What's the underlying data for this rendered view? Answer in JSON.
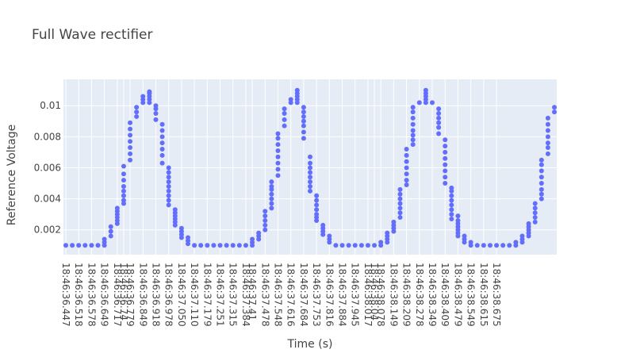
{
  "chart_data": {
    "type": "scatter",
    "title": "Full Wave rectifier",
    "xlabel": "Time (s)",
    "ylabel": "Reference Voltage",
    "colors": {
      "marker": "#636efa",
      "plot_bg": "#e5ecf6",
      "grid": "#ffffff"
    },
    "ylim": [
      0.0004,
      0.0117
    ],
    "y_ticks": [
      "0.002",
      "0.004",
      "0.006",
      "0.008",
      "0.01"
    ],
    "grid": true,
    "x_tick_labels": [
      "18:46:36.447",
      "18:46:36.518",
      "18:46:36.578",
      "18:46:36.649",
      "18:46:36.717",
      "18:46:36.74",
      "18:46:36.779",
      "18:46:36.849",
      "18:46:36.918",
      "18:46:36.978",
      "18:46:37.050",
      "18:46:37.110",
      "18:46:37.179",
      "18:46:37.251",
      "18:46:37.315",
      "18:46:37.384",
      "18:46:37.41",
      "18:46:37.478",
      "18:46:37.548",
      "18:46:37.616",
      "18:46:37.684",
      "18:46:37.753",
      "18:46:37.816",
      "18:46:37.884",
      "18:46:37.945",
      "18:46:38.017",
      "18:46:38.04",
      "18:46:38.078",
      "18:46:38.149",
      "18:46:38.209",
      "18:46:38.278",
      "18:46:38.349",
      "18:46:38.409",
      "18:46:38.479",
      "18:46:38.549",
      "18:46:38.615",
      "18:46:38.675"
    ],
    "x_tick_index": [
      0,
      2,
      4,
      6,
      8,
      9,
      10,
      12,
      14,
      16,
      18,
      20,
      22,
      24,
      26,
      28,
      29,
      31,
      33,
      35,
      37,
      39,
      41,
      43,
      45,
      47,
      48,
      49,
      51,
      53,
      55,
      57,
      59,
      61,
      63,
      65,
      67
    ],
    "series": [
      {
        "values": [
          [
            0.001
          ],
          [
            0.001
          ],
          [
            0.001
          ],
          [
            0.001
          ],
          [
            0.001
          ],
          [
            0.001
          ],
          [
            0.001,
            0.0012,
            0.0014
          ],
          [
            0.0016,
            0.0019,
            0.0022
          ],
          [
            0.0024,
            0.0026,
            0.0028,
            0.003,
            0.0032,
            0.0034
          ],
          [
            0.0037,
            0.0039,
            0.0042,
            0.0045,
            0.0048,
            0.0052,
            0.0056,
            0.0061
          ],
          [
            0.0065,
            0.0069,
            0.0073,
            0.0077,
            0.0081,
            0.0085,
            0.0089
          ],
          [
            0.0093,
            0.0096,
            0.0099
          ],
          [
            0.0102,
            0.0104,
            0.0106
          ],
          [
            0.0102,
            0.0104,
            0.0106,
            0.0108,
            0.0109
          ],
          [
            0.0091,
            0.0095,
            0.0098,
            0.01
          ],
          [
            0.0063,
            0.0068,
            0.0072,
            0.0076,
            0.008,
            0.0084,
            0.0088
          ],
          [
            0.0036,
            0.0039,
            0.0042,
            0.0045,
            0.0048,
            0.0051,
            0.0054,
            0.0057,
            0.006
          ],
          [
            0.0023,
            0.0025,
            0.0027,
            0.0029,
            0.0031,
            0.0033
          ],
          [
            0.0015,
            0.0017,
            0.0019,
            0.0021
          ],
          [
            0.0011,
            0.0013,
            0.0015
          ],
          [
            0.001
          ],
          [
            0.001
          ],
          [
            0.001
          ],
          [
            0.001
          ],
          [
            0.001
          ],
          [
            0.001
          ],
          [
            0.001
          ],
          [
            0.001
          ],
          [
            0.001
          ],
          [
            0.001,
            0.0012,
            0.0014
          ],
          [
            0.0014,
            0.0016,
            0.0018
          ],
          [
            0.002,
            0.0023,
            0.0026,
            0.0029,
            0.0032
          ],
          [
            0.0034,
            0.0037,
            0.004,
            0.0043,
            0.0046,
            0.0048,
            0.0051
          ],
          [
            0.0055,
            0.0059,
            0.0063,
            0.0067,
            0.0071,
            0.0075,
            0.0079,
            0.0082
          ],
          [
            0.0087,
            0.0091,
            0.0095,
            0.0098
          ],
          [
            0.0102,
            0.0104
          ],
          [
            0.0102,
            0.0104,
            0.0106,
            0.0108,
            0.011
          ],
          [
            0.0079,
            0.0083,
            0.0087,
            0.009,
            0.0093,
            0.0096,
            0.0099
          ],
          [
            0.0045,
            0.0048,
            0.0051,
            0.0054,
            0.0057,
            0.006,
            0.0063,
            0.0067
          ],
          [
            0.0026,
            0.0028,
            0.003,
            0.0033,
            0.0036,
            0.0039,
            0.0042
          ],
          [
            0.0017,
            0.0019,
            0.0021,
            0.0023
          ],
          [
            0.0012,
            0.0014,
            0.0016
          ],
          [
            0.001
          ],
          [
            0.001
          ],
          [
            0.001
          ],
          [
            0.001
          ],
          [
            0.001
          ],
          [
            0.001
          ],
          [
            0.001
          ],
          [
            0.001,
            0.0012
          ],
          [
            0.0012,
            0.0014,
            0.0016,
            0.0018
          ],
          [
            0.0019,
            0.0021,
            0.0023,
            0.0025
          ],
          [
            0.0028,
            0.0031,
            0.0034,
            0.0037,
            0.004,
            0.0043,
            0.0046
          ],
          [
            0.0049,
            0.0052,
            0.0056,
            0.006,
            0.0064,
            0.0068,
            0.0072
          ],
          [
            0.0075,
            0.0078,
            0.0081,
            0.0084,
            0.0088,
            0.0092,
            0.0096,
            0.0099
          ],
          [
            0.0102
          ],
          [
            0.0102,
            0.0104,
            0.0106,
            0.0108,
            0.011
          ],
          [
            0.0102
          ],
          [
            0.0082,
            0.0086,
            0.0089,
            0.0092,
            0.0095,
            0.0098
          ],
          [
            0.005,
            0.0054,
            0.0058,
            0.0062,
            0.0066,
            0.007,
            0.0074,
            0.0078
          ],
          [
            0.0027,
            0.003,
            0.0033,
            0.0036,
            0.0039,
            0.0042,
            0.0045,
            0.0047
          ],
          [
            0.0016,
            0.0018,
            0.002,
            0.0022,
            0.0024,
            0.0026,
            0.0029
          ],
          [
            0.0012,
            0.0014,
            0.0016
          ],
          [
            0.001,
            0.0012
          ],
          [
            0.001
          ],
          [
            0.001
          ],
          [
            0.001
          ],
          [
            0.001
          ],
          [
            0.001
          ],
          [
            0.001
          ],
          [
            0.001,
            0.0012
          ],
          [
            0.0012,
            0.0014,
            0.0016
          ],
          [
            0.0016,
            0.0018,
            0.002,
            0.0022,
            0.0024
          ],
          [
            0.0025,
            0.0028,
            0.0031,
            0.0034,
            0.0037
          ],
          [
            0.004,
            0.0043,
            0.0046,
            0.005,
            0.0054,
            0.0058,
            0.0062,
            0.0065
          ],
          [
            0.0069,
            0.0073,
            0.0076,
            0.008,
            0.0084,
            0.0088,
            0.0092
          ],
          [
            0.0096,
            0.0099
          ]
        ]
      }
    ]
  }
}
